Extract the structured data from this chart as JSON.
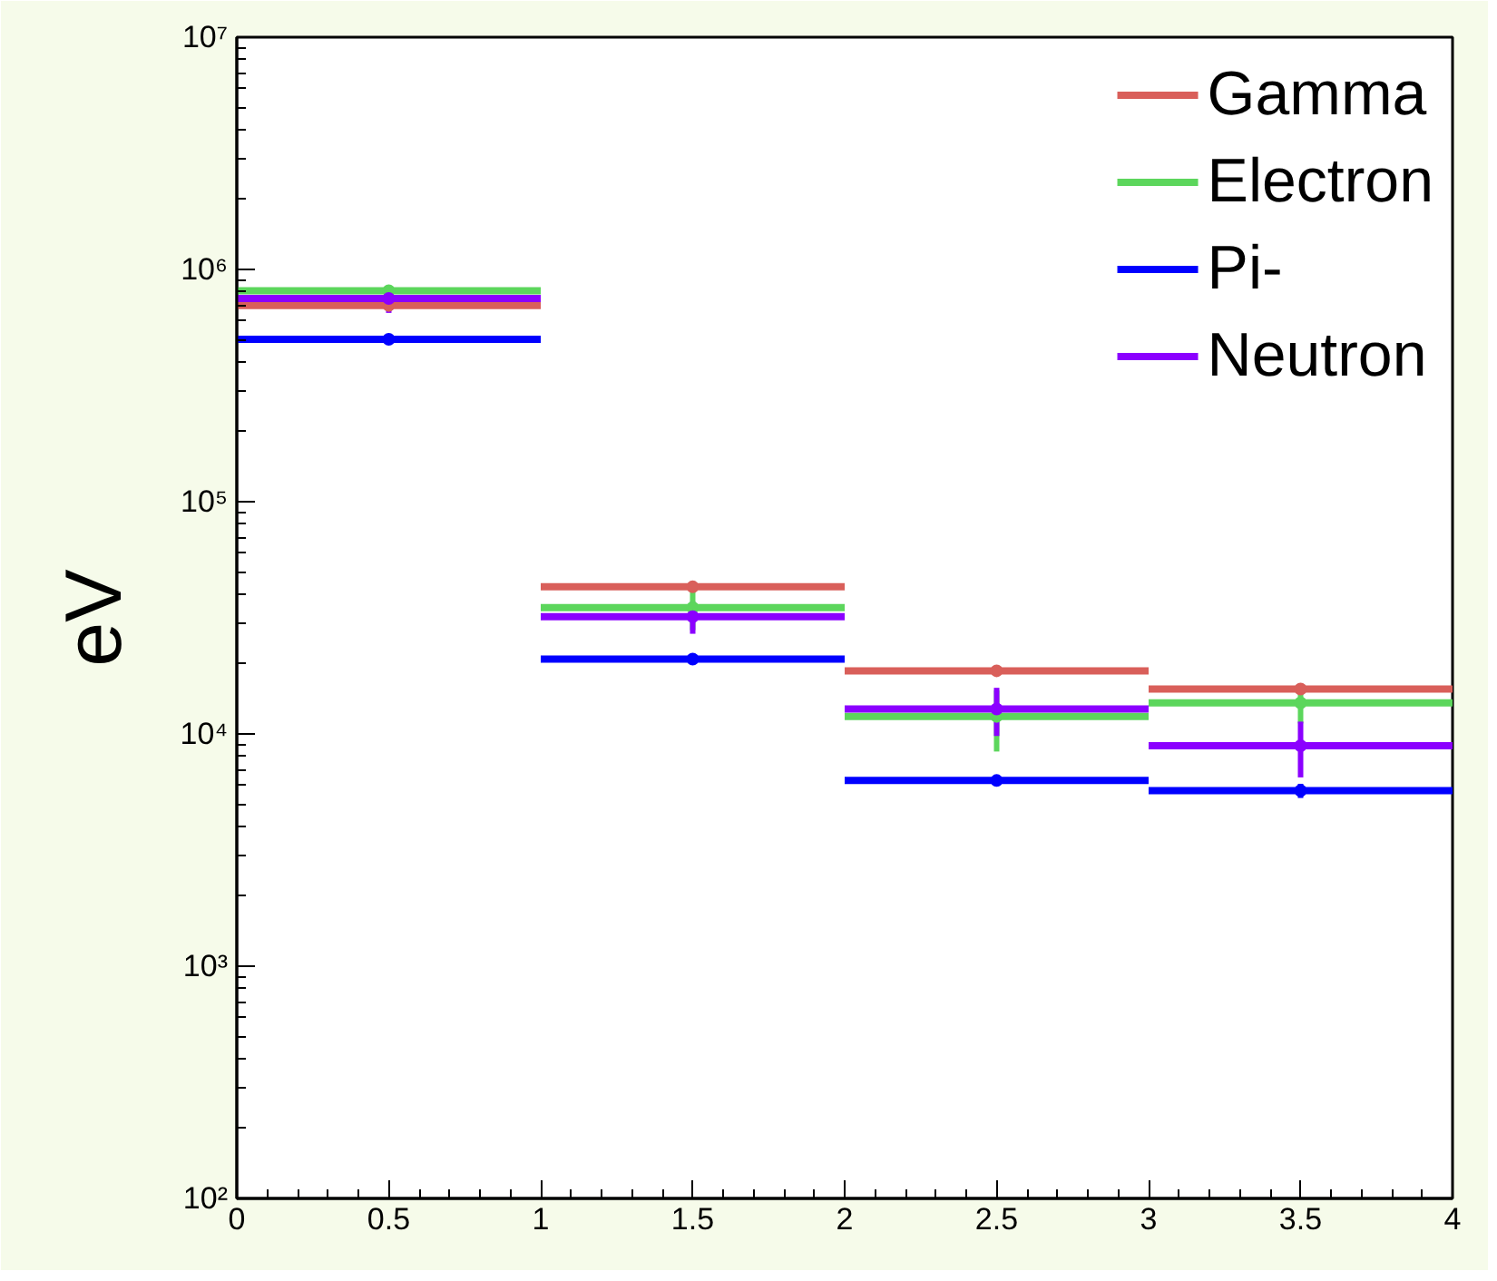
{
  "chart_data": {
    "type": "scatter",
    "ylabel": "eV",
    "x": [
      0.5,
      1.5,
      2.5,
      3.5
    ],
    "log": true,
    "grid": false,
    "legend": "top right",
    "marker": "circle",
    "xlim": [
      0,
      4
    ],
    "xticks": [
      0,
      0.5,
      1,
      1.5,
      2,
      2.5,
      3,
      3.5,
      4
    ],
    "ylim": [
      100,
      10000000
    ],
    "yticks": [
      {
        "value": 100,
        "label": "10²"
      },
      {
        "value": 1000,
        "label": "10³"
      },
      {
        "value": 10000,
        "label": "10⁴"
      },
      {
        "value": 100000,
        "label": "10⁵"
      },
      {
        "value": 1000000,
        "label": "10⁶"
      },
      {
        "value": 10000000,
        "label": "10⁷"
      }
    ],
    "series": [
      {
        "name": "Gamma",
        "color": "#d95f5a",
        "values": [
          700000,
          43000,
          18700,
          15600
        ],
        "xerrors": [
          0.5,
          0.5,
          0.5,
          0.5
        ]
      },
      {
        "name": "Electron",
        "color": "#5cd65c",
        "values": [
          810000,
          35000,
          11900,
          13600
        ],
        "xerrors": [
          0.5,
          0.5,
          0.5,
          0.5
        ],
        "errors": [
          null,
          7000,
          3500,
          2500
        ]
      },
      {
        "name": "Pi-",
        "color": "#0000ff",
        "values": [
          500000,
          21000,
          6300,
          5700
        ],
        "xerrors": [
          0.5,
          0.5,
          0.5,
          0.5
        ],
        "errors": [
          null,
          1000,
          300,
          400
        ]
      },
      {
        "name": "Neutron",
        "color": "#8b00ff",
        "values": [
          750000,
          32000,
          12800,
          8900
        ],
        "xerrors": [
          0.5,
          0.5,
          0.5,
          0.5
        ],
        "errors": [
          100000,
          5000,
          3000,
          2400
        ]
      }
    ]
  }
}
